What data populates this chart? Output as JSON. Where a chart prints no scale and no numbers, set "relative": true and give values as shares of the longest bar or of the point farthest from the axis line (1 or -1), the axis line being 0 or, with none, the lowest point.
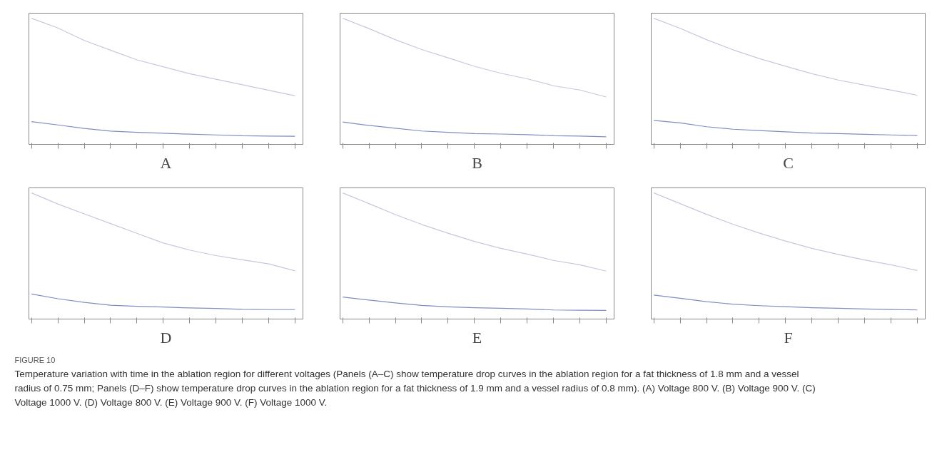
{
  "chart_data": [
    {
      "type": "line",
      "title": "A",
      "relative": true,
      "grid": false,
      "categories": [
        null,
        null,
        null,
        null,
        null,
        null,
        null,
        null,
        null,
        null,
        null
      ],
      "series": [
        {
          "color": "#c3c9de",
          "values": [
            1,
            0.923,
            0.824,
            0.747,
            0.67,
            0.615,
            0.56,
            0.516,
            0.473,
            0.429,
            0.385
          ]
        },
        {
          "color": "#7f8dc4",
          "values": [
            0.18,
            0.154,
            0.127,
            0.105,
            0.095,
            0.088,
            0.081,
            0.075,
            0.068,
            0.066,
            0.064
          ]
        }
      ]
    },
    {
      "type": "line",
      "title": "B",
      "relative": true,
      "grid": false,
      "categories": [
        null,
        null,
        null,
        null,
        null,
        null,
        null,
        null,
        null,
        null,
        null
      ],
      "series": [
        {
          "color": "#c3c9de",
          "values": [
            1,
            0.918,
            0.83,
            0.752,
            0.686,
            0.619,
            0.564,
            0.52,
            0.465,
            0.431,
            0.376
          ]
        },
        {
          "color": "#7f8dc4",
          "values": [
            0.177,
            0.15,
            0.128,
            0.106,
            0.095,
            0.086,
            0.082,
            0.077,
            0.069,
            0.066,
            0.06
          ]
        }
      ]
    },
    {
      "type": "line",
      "title": "C",
      "relative": true,
      "grid": false,
      "categories": [
        null,
        null,
        null,
        null,
        null,
        null,
        null,
        null,
        null,
        null,
        null
      ],
      "series": [
        {
          "color": "#c3c9de",
          "values": [
            1,
            0.92,
            0.83,
            0.75,
            0.68,
            0.62,
            0.56,
            0.51,
            0.47,
            0.43,
            0.39
          ]
        },
        {
          "color": "#7f8dc4",
          "values": [
            0.19,
            0.17,
            0.14,
            0.12,
            0.11,
            0.1,
            0.09,
            0.085,
            0.08,
            0.075,
            0.07
          ]
        }
      ]
    },
    {
      "type": "line",
      "title": "D",
      "relative": true,
      "grid": false,
      "categories": [
        null,
        null,
        null,
        null,
        null,
        null,
        null,
        null,
        null,
        null,
        null
      ],
      "series": [
        {
          "color": "#c3c9de",
          "values": [
            1,
            0.912,
            0.834,
            0.757,
            0.68,
            0.603,
            0.547,
            0.503,
            0.47,
            0.437,
            0.382
          ]
        },
        {
          "color": "#7f8dc4",
          "values": [
            0.199,
            0.161,
            0.132,
            0.11,
            0.101,
            0.095,
            0.088,
            0.084,
            0.077,
            0.075,
            0.075
          ]
        }
      ]
    },
    {
      "type": "line",
      "title": "E",
      "relative": true,
      "grid": false,
      "categories": [
        null,
        null,
        null,
        null,
        null,
        null,
        null,
        null,
        null,
        null,
        null
      ],
      "series": [
        {
          "color": "#c3c9de",
          "values": [
            1,
            0.915,
            0.828,
            0.75,
            0.68,
            0.615,
            0.56,
            0.515,
            0.465,
            0.43,
            0.38
          ]
        },
        {
          "color": "#7f8dc4",
          "values": [
            0.175,
            0.15,
            0.128,
            0.108,
            0.097,
            0.09,
            0.085,
            0.08,
            0.072,
            0.07,
            0.068
          ]
        }
      ]
    },
    {
      "type": "line",
      "title": "F",
      "relative": true,
      "grid": false,
      "categories": [
        null,
        null,
        null,
        null,
        null,
        null,
        null,
        null,
        null,
        null,
        null
      ],
      "series": [
        {
          "color": "#c3c9de",
          "values": [
            1,
            0.915,
            0.83,
            0.752,
            0.682,
            0.618,
            0.56,
            0.512,
            0.468,
            0.43,
            0.385
          ]
        },
        {
          "color": "#7f8dc4",
          "values": [
            0.19,
            0.165,
            0.138,
            0.118,
            0.106,
            0.098,
            0.09,
            0.085,
            0.08,
            0.076,
            0.072
          ]
        }
      ]
    },
    {
      "type": "other",
      "title": "FIGURE 10",
      "annotations": [
        "Temperature variation with time in the ablation region for different voltages (Panels (A–C) show temperature drop curves in the ablation region for a fat thickness of 1.8 mm and a vessel radius of 0.75 mm; Panels (D–F) show temperature drop curves in the ablation region for a fat thickness of 1.9 mm and a vessel radius of 0.8 mm). (A) Voltage 800 V. (B) Voltage 900 V. (C) Voltage 1000 V. (D) Voltage 800 V. (E) Voltage 900 V. (F) Voltage 1000 V."
      ]
    }
  ]
}
